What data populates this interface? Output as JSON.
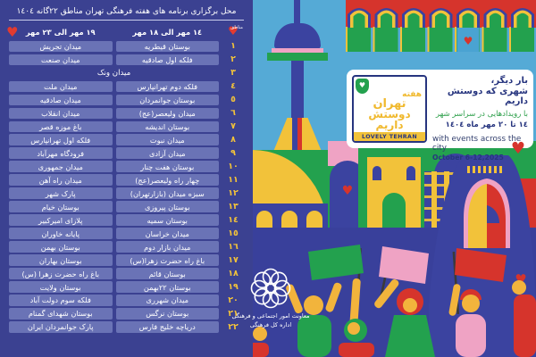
{
  "icons": {
    "heart": "♥"
  },
  "colors": {
    "panel": "#3b4191",
    "cell": "#6a73b6",
    "number_yellow": "#f2c23a",
    "sky": "#55aad6",
    "green": "#23a14e",
    "red": "#d6342c",
    "pink": "#efa3c4",
    "blue": "#3b43a0",
    "card_blue": "#27357f"
  },
  "panel": {
    "title": "محل برگزاری برنامه های هفته فرهنگی تهران  مناطق ٢٢گانه ١٤٠٤",
    "columns": {
      "num": "مناطق",
      "first": "١٤ مهر الی ١٨ مهر",
      "second": "١٩ مهر الی ٢٣ مهر"
    },
    "rows": [
      {
        "num": "١",
        "first": "بوستان قیطریه",
        "second": "میدان تجریش"
      },
      {
        "num": "٢",
        "first": "فلکه اول صادقیه",
        "second": "میدان صنعت"
      },
      {
        "num": "٣",
        "merged": "میدان ونک"
      },
      {
        "num": "٤",
        "first": "فلکه دوم تهرانپارس",
        "second": "میدان ملت"
      },
      {
        "num": "٥",
        "first": "بوستان جوانمردان",
        "second": "میدان صادقیه"
      },
      {
        "num": "٦",
        "first": "میدان ولیعصر(عج)",
        "second": "میدان انقلاب"
      },
      {
        "num": "٧",
        "first": "بوستان اندیشه",
        "second": "باغ موزه قصر"
      },
      {
        "num": "٨",
        "first": "میدان نبوت",
        "second": "فلکه اول تهرانپارس"
      },
      {
        "num": "٩",
        "first": "میدان آزادی",
        "second": "فرودگاه مهرآباد"
      },
      {
        "num": "١٠",
        "first": "بوستان هفت چنار",
        "second": "میدان جمهوری"
      },
      {
        "num": "١١",
        "first": "چهار راه ولیعصر(عج)",
        "second": "میدان راه آهن"
      },
      {
        "num": "١٢",
        "first": "سبزه میدان (بازارتهران)",
        "second": "پارک شهر"
      },
      {
        "num": "١٣",
        "first": "بوستان پیروزی",
        "second": "بوستان خیام"
      },
      {
        "num": "١٤",
        "first": "بوستان سمیه",
        "second": "پلازای امیرکبیر"
      },
      {
        "num": "١٥",
        "first": "میدان خراسان",
        "second": "پایانه خاوران"
      },
      {
        "num": "١٦",
        "first": "میدان بازار دوم",
        "second": "بوستان بهمن"
      },
      {
        "num": "١٧",
        "first": "باغ راه حضرت زهرا(س)",
        "second": "بوستان بهاران"
      },
      {
        "num": "١٨",
        "first": "بوستان قائم",
        "second": "باغ راه حضرت زهرا (س)"
      },
      {
        "num": "١٩",
        "first": "بوستان ٢٢بهمن",
        "second": "بوستان ولایت"
      },
      {
        "num": "٢٠",
        "first": "میدان شهرری",
        "second": "فلکه سوم دولت آباد"
      },
      {
        "num": "٢١",
        "first": "بوستان نرگس",
        "second": "بوستان شهدای گمنام"
      },
      {
        "num": "٢٢",
        "first": "دریاچه خلیج فارس",
        "second": "پارک جوانمردان ایران"
      }
    ]
  },
  "card": {
    "fa_line1": "بار دیگر،",
    "fa_line2": "شهری که دوستش داریم",
    "fa_line3": "با رویدادهایی در سراسر شهر",
    "fa_line4": "١٤ تا ٢٠ مهر ماه ١٤٠٤",
    "en_line1": "with events across the city",
    "en_line2": "October 6-12,2025",
    "logo": {
      "fa_top": "هفته",
      "fa_mid1": "تهران",
      "fa_mid2": "دوستش",
      "fa_mid3": "داریم",
      "en": "LOVELY TEHRAN"
    }
  },
  "muni": {
    "line1": "معاونت امور اجتماعی و فرهنگی",
    "line2": "اداره کل فرهنگی"
  }
}
